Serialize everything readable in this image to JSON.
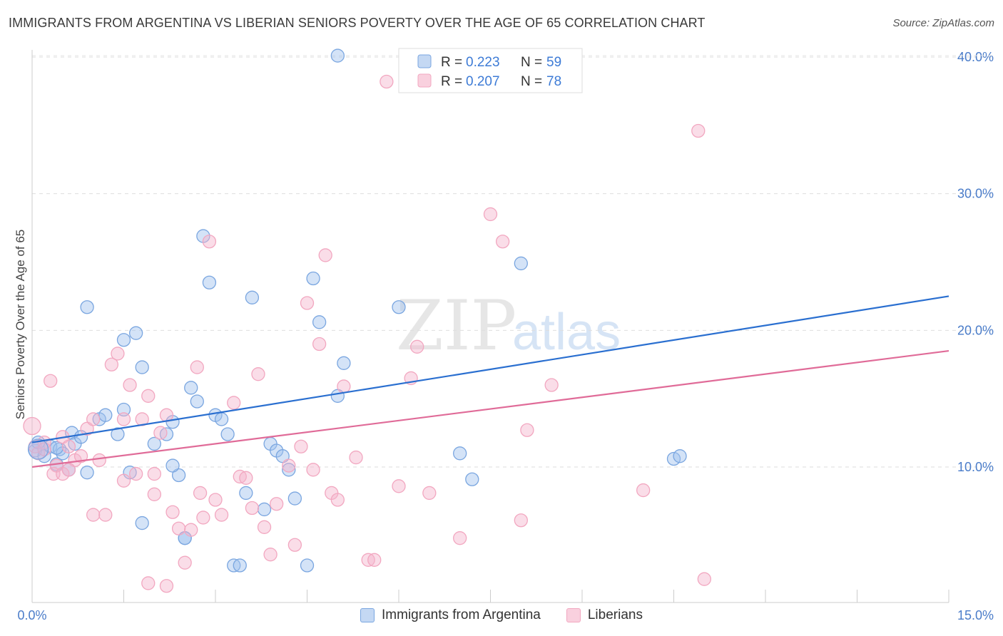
{
  "title": "IMMIGRANTS FROM ARGENTINA VS LIBERIAN SENIORS POVERTY OVER THE AGE OF 65 CORRELATION CHART",
  "source": "Source: ZipAtlas.com",
  "watermark": {
    "zip": "ZIP",
    "atlas": "atlas"
  },
  "chart_data": {
    "type": "scatter",
    "ylabel": "Seniors Poverty Over the Age of 65",
    "xlabel": "",
    "xlim": [
      0,
      15
    ],
    "ylim": [
      0,
      41.5
    ],
    "x_tick_labels": [
      {
        "value": 0,
        "label": "0.0%"
      },
      {
        "value": 15,
        "label": "15.0%"
      }
    ],
    "y_tick_labels": [
      {
        "value": 10,
        "label": "10.0%"
      },
      {
        "value": 20,
        "label": "20.0%"
      },
      {
        "value": 30,
        "label": "30.0%"
      },
      {
        "value": 40,
        "label": "40.0%"
      }
    ],
    "grid": "horizontal dashed",
    "legend_placement": "top-center",
    "series": [
      {
        "name": "Immigrants from Argentina",
        "color": "#7aa6e0",
        "line_color": "#2a6fd0",
        "R": "0.223",
        "N": "59",
        "trend": [
          [
            0,
            11.8
          ],
          [
            15,
            22.5
          ]
        ],
        "points": [
          [
            0.05,
            11.2
          ],
          [
            0.1,
            11.8
          ],
          [
            0.2,
            10.8
          ],
          [
            0.3,
            11.5
          ],
          [
            0.4,
            10.2
          ],
          [
            0.45,
            11.3
          ],
          [
            0.5,
            11.0
          ],
          [
            0.6,
            9.8
          ],
          [
            0.65,
            12.5
          ],
          [
            0.7,
            11.7
          ],
          [
            0.8,
            12.2
          ],
          [
            0.9,
            9.6
          ],
          [
            1.1,
            13.5
          ],
          [
            1.2,
            13.8
          ],
          [
            1.4,
            12.4
          ],
          [
            1.5,
            14.2
          ],
          [
            1.6,
            9.6
          ],
          [
            1.8,
            5.9
          ],
          [
            2.0,
            11.7
          ],
          [
            2.2,
            12.4
          ],
          [
            2.3,
            13.3
          ],
          [
            2.4,
            9.4
          ],
          [
            2.5,
            4.8
          ],
          [
            2.6,
            15.8
          ],
          [
            2.7,
            14.8
          ],
          [
            2.8,
            26.9
          ],
          [
            2.9,
            23.5
          ],
          [
            3.0,
            13.8
          ],
          [
            3.1,
            13.5
          ],
          [
            3.2,
            12.4
          ],
          [
            3.3,
            2.8
          ],
          [
            3.4,
            2.8
          ],
          [
            3.5,
            8.1
          ],
          [
            3.6,
            22.4
          ],
          [
            3.8,
            6.9
          ],
          [
            3.9,
            11.7
          ],
          [
            4.0,
            11.2
          ],
          [
            4.1,
            10.8
          ],
          [
            4.2,
            9.8
          ],
          [
            4.3,
            7.7
          ],
          [
            4.5,
            2.8
          ],
          [
            4.6,
            23.8
          ],
          [
            4.7,
            20.6
          ],
          [
            5.0,
            15.2
          ],
          [
            5.1,
            17.6
          ],
          [
            5.0,
            40.1
          ],
          [
            6.0,
            21.7
          ],
          [
            7.0,
            11.0
          ],
          [
            7.2,
            9.1
          ],
          [
            8.0,
            24.9
          ],
          [
            10.5,
            10.6
          ],
          [
            10.6,
            10.8
          ],
          [
            0.9,
            21.7
          ],
          [
            1.5,
            19.3
          ],
          [
            1.7,
            19.8
          ],
          [
            1.8,
            17.3
          ],
          [
            2.3,
            10.1
          ],
          [
            2.5,
            4.8
          ],
          [
            0.4,
            11.4
          ]
        ]
      },
      {
        "name": "Liberians",
        "color": "#f2a7c0",
        "line_color": "#e06b98",
        "R": "0.207",
        "N": "78",
        "trend": [
          [
            0,
            10.0
          ],
          [
            15,
            18.5
          ]
        ],
        "points": [
          [
            0.0,
            13.0
          ],
          [
            0.05,
            11.5
          ],
          [
            0.1,
            11.0
          ],
          [
            0.2,
            11.8
          ],
          [
            0.3,
            16.3
          ],
          [
            0.35,
            9.5
          ],
          [
            0.4,
            10.1
          ],
          [
            0.5,
            12.2
          ],
          [
            0.5,
            9.5
          ],
          [
            0.6,
            11.5
          ],
          [
            0.7,
            10.5
          ],
          [
            0.8,
            10.8
          ],
          [
            0.9,
            12.8
          ],
          [
            1.0,
            13.5
          ],
          [
            1.0,
            6.5
          ],
          [
            1.1,
            10.5
          ],
          [
            1.2,
            6.5
          ],
          [
            1.3,
            17.5
          ],
          [
            1.4,
            18.3
          ],
          [
            1.5,
            9.0
          ],
          [
            1.6,
            16.0
          ],
          [
            1.7,
            9.5
          ],
          [
            1.8,
            13.5
          ],
          [
            1.9,
            15.2
          ],
          [
            1.9,
            1.5
          ],
          [
            2.0,
            9.5
          ],
          [
            2.0,
            8.0
          ],
          [
            2.1,
            12.5
          ],
          [
            2.2,
            13.8
          ],
          [
            2.2,
            1.3
          ],
          [
            2.3,
            6.7
          ],
          [
            2.4,
            5.5
          ],
          [
            2.5,
            3.0
          ],
          [
            2.6,
            5.4
          ],
          [
            2.7,
            17.3
          ],
          [
            2.75,
            8.1
          ],
          [
            2.8,
            6.3
          ],
          [
            2.9,
            26.5
          ],
          [
            3.0,
            7.6
          ],
          [
            3.1,
            6.5
          ],
          [
            3.3,
            14.7
          ],
          [
            3.4,
            9.3
          ],
          [
            3.5,
            9.2
          ],
          [
            3.6,
            7.0
          ],
          [
            3.7,
            16.8
          ],
          [
            3.8,
            5.6
          ],
          [
            3.9,
            3.6
          ],
          [
            4.0,
            7.3
          ],
          [
            4.2,
            10.1
          ],
          [
            4.3,
            4.3
          ],
          [
            4.4,
            11.5
          ],
          [
            4.5,
            22.0
          ],
          [
            4.6,
            9.8
          ],
          [
            4.7,
            19.0
          ],
          [
            4.8,
            25.5
          ],
          [
            4.9,
            8.1
          ],
          [
            5.0,
            7.6
          ],
          [
            5.1,
            15.9
          ],
          [
            5.3,
            10.7
          ],
          [
            5.5,
            3.2
          ],
          [
            5.6,
            3.2
          ],
          [
            5.8,
            38.2
          ],
          [
            6.0,
            8.6
          ],
          [
            6.2,
            16.5
          ],
          [
            6.3,
            18.8
          ],
          [
            6.5,
            8.1
          ],
          [
            7.0,
            4.8
          ],
          [
            7.5,
            28.5
          ],
          [
            7.7,
            26.5
          ],
          [
            8.0,
            6.1
          ],
          [
            8.1,
            12.7
          ],
          [
            8.5,
            16.0
          ],
          [
            10.0,
            8.3
          ],
          [
            10.9,
            34.6
          ],
          [
            11.0,
            1.8
          ],
          [
            0.2,
            11.3
          ],
          [
            0.6,
            9.8
          ],
          [
            1.5,
            13.5
          ]
        ]
      }
    ]
  }
}
